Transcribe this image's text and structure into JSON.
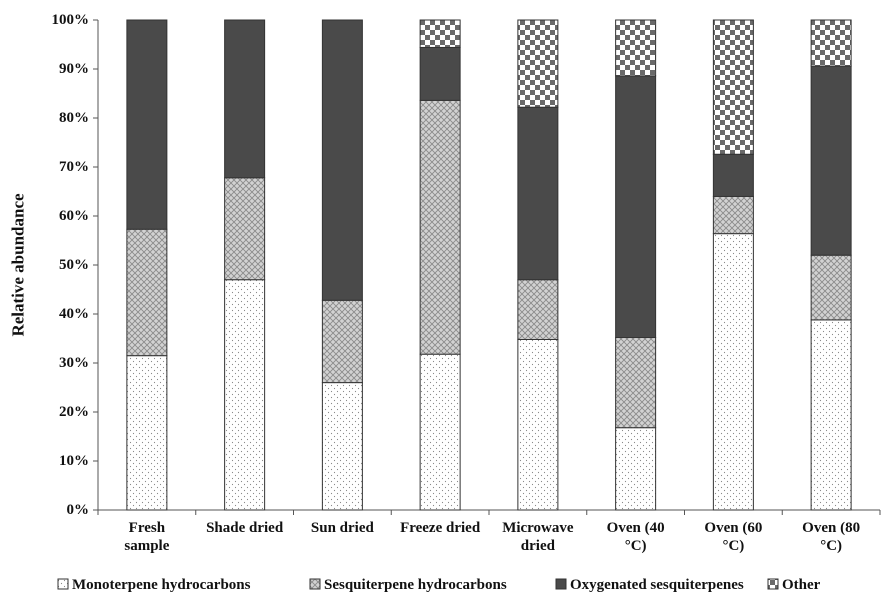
{
  "chart_data": {
    "type": "bar",
    "stacked": true,
    "percent": true,
    "ylabel": "Relative abundance",
    "xlabel": "",
    "ylim": [
      0,
      100
    ],
    "yticks": [
      "0%",
      "10%",
      "20%",
      "30%",
      "40%",
      "50%",
      "60%",
      "70%",
      "80%",
      "90%",
      "100%"
    ],
    "categories": [
      [
        "Fresh",
        "sample"
      ],
      [
        "Shade dried"
      ],
      [
        "Sun dried"
      ],
      [
        "Freeze dried"
      ],
      [
        "Microwave",
        "dried"
      ],
      [
        "Oven (40",
        "°C)"
      ],
      [
        "Oven (60",
        "°C)"
      ],
      [
        "Oven (80",
        "°C)"
      ]
    ],
    "series": [
      {
        "name": "Monoterpene hydrocarbons",
        "pattern": "dots",
        "values": [
          31.5,
          47,
          26,
          31.8,
          34.8,
          16.8,
          56.4,
          38.8
        ]
      },
      {
        "name": "Sesquiterpene hydrocarbons",
        "pattern": "crosshatch",
        "values": [
          25.8,
          20.8,
          16.8,
          51.8,
          12.2,
          18.4,
          7.6,
          13.2
        ]
      },
      {
        "name": "Oxygenated sesquiterpenes",
        "pattern": "dark",
        "values": [
          42.7,
          32.2,
          57.2,
          10.8,
          35.2,
          53.4,
          8.6,
          38.6
        ]
      },
      {
        "name": "Other",
        "pattern": "checker",
        "values": [
          0,
          0,
          0,
          5.6,
          17.8,
          11.4,
          27.4,
          9.4
        ]
      }
    ],
    "legend_position": "bottom",
    "grid": false,
    "colors": {
      "dark": "#4a4a4a",
      "crosshatch_bg": "#cfcfcf",
      "axis": "#555555"
    }
  }
}
